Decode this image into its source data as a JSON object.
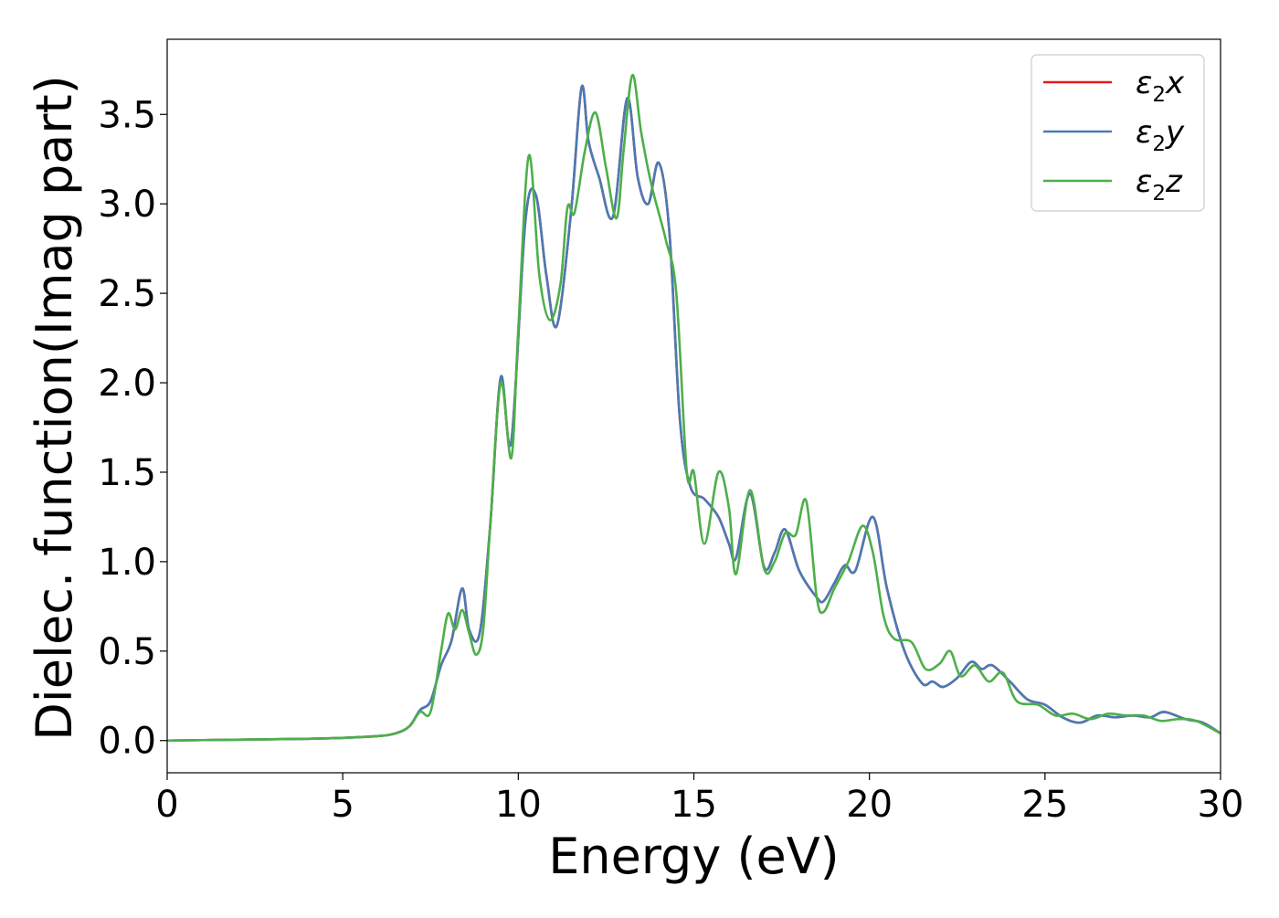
{
  "chart_data": {
    "type": "line",
    "title": "",
    "xlabel": "Energy (eV)",
    "ylabel": "Dielec. function(Imag part)",
    "xlim": [
      0,
      30
    ],
    "ylim": [
      -0.18,
      3.92
    ],
    "xticks": [
      0,
      5,
      10,
      15,
      20,
      25,
      30
    ],
    "xtick_labels": [
      "0",
      "5",
      "10",
      "15",
      "20",
      "25",
      "30"
    ],
    "yticks": [
      0.0,
      0.5,
      1.0,
      1.5,
      2.0,
      2.5,
      3.0,
      3.5
    ],
    "ytick_labels": [
      "0.0",
      "0.5",
      "1.0",
      "1.5",
      "2.0",
      "2.5",
      "3.0",
      "3.5"
    ],
    "grid": false,
    "legend_position": "top-right",
    "legend": [
      {
        "base": "ε",
        "sub": "2",
        "comp": "x",
        "color": "#e41a1c"
      },
      {
        "base": "ε",
        "sub": "2",
        "comp": "y",
        "color": "#4a7ab5"
      },
      {
        "base": "ε",
        "sub": "2",
        "comp": "z",
        "color": "#4daf4a"
      }
    ],
    "series": [
      {
        "name": "ε2x",
        "color": "#e41a1c",
        "x": [
          0,
          2,
          4,
          5,
          6,
          6.5,
          6.9,
          7.2,
          7.5,
          7.8,
          8.1,
          8.4,
          8.6,
          8.9,
          9.2,
          9.5,
          9.8,
          10.2,
          10.5,
          10.8,
          11.1,
          11.5,
          11.8,
          12.0,
          12.3,
          12.7,
          13.1,
          13.4,
          13.7,
          14.0,
          14.3,
          14.6,
          14.9,
          15.3,
          15.7,
          16.0,
          16.2,
          16.6,
          17.0,
          17.3,
          17.6,
          18.0,
          18.5,
          18.7,
          19.0,
          19.3,
          19.6,
          20.1,
          20.5,
          21.0,
          21.5,
          21.8,
          22.1,
          22.5,
          22.9,
          23.2,
          23.5,
          24.0,
          24.5,
          25.0,
          25.5,
          26.0,
          26.5,
          27.0,
          27.5,
          28.0,
          28.4,
          29.0,
          29.5,
          30.0
        ],
        "values": [
          0.0,
          0.005,
          0.01,
          0.015,
          0.025,
          0.04,
          0.08,
          0.17,
          0.22,
          0.42,
          0.56,
          0.85,
          0.62,
          0.6,
          1.2,
          2.03,
          1.67,
          2.9,
          3.05,
          2.6,
          2.32,
          2.95,
          3.65,
          3.35,
          3.15,
          2.93,
          3.59,
          3.15,
          3.0,
          3.23,
          2.85,
          1.8,
          1.42,
          1.35,
          1.25,
          1.1,
          1.02,
          1.38,
          0.97,
          1.05,
          1.18,
          0.95,
          0.8,
          0.78,
          0.88,
          0.98,
          0.95,
          1.25,
          0.85,
          0.5,
          0.32,
          0.33,
          0.3,
          0.35,
          0.44,
          0.4,
          0.42,
          0.33,
          0.23,
          0.2,
          0.13,
          0.1,
          0.14,
          0.13,
          0.14,
          0.13,
          0.16,
          0.12,
          0.1,
          0.04
        ]
      },
      {
        "name": "ε2y",
        "color": "#4a7ab5",
        "x": [
          0,
          2,
          4,
          5,
          6,
          6.5,
          6.9,
          7.2,
          7.5,
          7.8,
          8.1,
          8.4,
          8.6,
          8.9,
          9.2,
          9.5,
          9.8,
          10.2,
          10.5,
          10.8,
          11.1,
          11.5,
          11.8,
          12.0,
          12.3,
          12.7,
          13.1,
          13.4,
          13.7,
          14.0,
          14.3,
          14.6,
          14.9,
          15.3,
          15.7,
          16.0,
          16.2,
          16.6,
          17.0,
          17.3,
          17.6,
          18.0,
          18.5,
          18.7,
          19.0,
          19.3,
          19.6,
          20.1,
          20.5,
          21.0,
          21.5,
          21.8,
          22.1,
          22.5,
          22.9,
          23.2,
          23.5,
          24.0,
          24.5,
          25.0,
          25.5,
          26.0,
          26.5,
          27.0,
          27.5,
          28.0,
          28.4,
          29.0,
          29.5,
          30.0
        ],
        "values": [
          0.0,
          0.005,
          0.01,
          0.015,
          0.025,
          0.04,
          0.08,
          0.17,
          0.22,
          0.42,
          0.56,
          0.85,
          0.62,
          0.6,
          1.2,
          2.03,
          1.67,
          2.9,
          3.05,
          2.6,
          2.32,
          2.95,
          3.65,
          3.35,
          3.15,
          2.93,
          3.59,
          3.15,
          3.0,
          3.23,
          2.85,
          1.8,
          1.42,
          1.35,
          1.25,
          1.1,
          1.02,
          1.38,
          0.97,
          1.05,
          1.18,
          0.95,
          0.8,
          0.78,
          0.88,
          0.98,
          0.95,
          1.25,
          0.85,
          0.5,
          0.32,
          0.33,
          0.3,
          0.35,
          0.44,
          0.4,
          0.42,
          0.33,
          0.23,
          0.2,
          0.13,
          0.1,
          0.14,
          0.13,
          0.14,
          0.13,
          0.16,
          0.12,
          0.1,
          0.04
        ]
      },
      {
        "name": "ε2z",
        "color": "#4daf4a",
        "x": [
          0,
          2,
          4,
          5,
          6,
          6.5,
          6.9,
          7.2,
          7.5,
          7.8,
          8.0,
          8.2,
          8.4,
          8.6,
          8.8,
          9.0,
          9.2,
          9.5,
          9.8,
          10.0,
          10.3,
          10.6,
          10.9,
          11.2,
          11.4,
          11.6,
          11.9,
          12.2,
          12.5,
          12.8,
          13.0,
          13.25,
          13.5,
          13.8,
          14.2,
          14.5,
          14.8,
          15.0,
          15.3,
          15.7,
          16.0,
          16.2,
          16.6,
          17.0,
          17.3,
          17.6,
          17.9,
          18.2,
          18.5,
          18.7,
          19.0,
          19.4,
          19.8,
          20.1,
          20.4,
          20.7,
          21.2,
          21.6,
          22.0,
          22.3,
          22.6,
          23.0,
          23.4,
          23.8,
          24.2,
          24.8,
          25.3,
          25.8,
          26.3,
          26.8,
          27.3,
          27.8,
          28.3,
          28.8,
          29.3,
          30.0
        ],
        "values": [
          0.0,
          0.005,
          0.01,
          0.015,
          0.025,
          0.04,
          0.08,
          0.16,
          0.16,
          0.5,
          0.71,
          0.62,
          0.73,
          0.6,
          0.48,
          0.62,
          1.2,
          2.0,
          1.58,
          2.3,
          3.27,
          2.6,
          2.35,
          2.55,
          2.98,
          2.95,
          3.3,
          3.51,
          3.2,
          2.92,
          3.3,
          3.72,
          3.4,
          3.1,
          2.8,
          2.5,
          1.5,
          1.5,
          1.1,
          1.5,
          1.3,
          0.93,
          1.4,
          0.96,
          1.0,
          1.16,
          1.15,
          1.34,
          0.8,
          0.72,
          0.85,
          1.0,
          1.2,
          1.05,
          0.7,
          0.57,
          0.55,
          0.4,
          0.43,
          0.5,
          0.36,
          0.42,
          0.33,
          0.38,
          0.22,
          0.2,
          0.14,
          0.15,
          0.12,
          0.15,
          0.14,
          0.14,
          0.11,
          0.12,
          0.11,
          0.04
        ]
      }
    ]
  }
}
